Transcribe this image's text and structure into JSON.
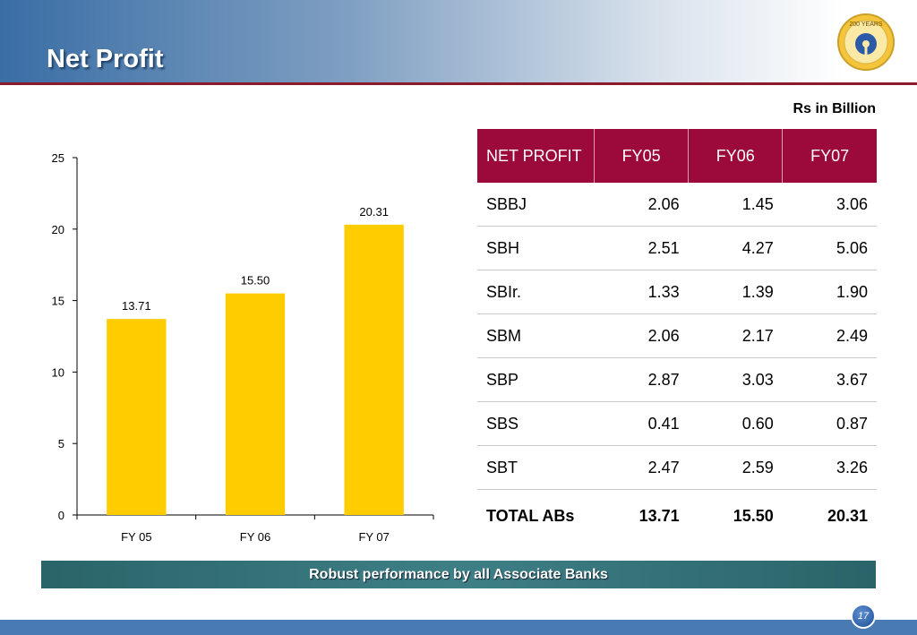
{
  "slide": {
    "title": "Net Profit",
    "unit_label": "Rs in Billion",
    "banner": "Robust performance by all Associate Banks",
    "page_number": "17",
    "logo_text": "200 YEARS"
  },
  "chart_data": {
    "type": "bar",
    "categories": [
      "FY 05",
      "FY 06",
      "FY 07"
    ],
    "values": [
      13.71,
      15.5,
      20.31
    ],
    "data_labels": [
      "13.71",
      "15.50",
      "20.31"
    ],
    "ylim": [
      0,
      25
    ],
    "yticks": [
      "0",
      "5",
      "10",
      "15",
      "20",
      "25"
    ],
    "bar_color": "#ffcc00",
    "grid": false
  },
  "table": {
    "header": [
      "NET PROFIT",
      "FY05",
      "FY06",
      "FY07"
    ],
    "rows": [
      {
        "name": "SBBJ",
        "fy05": "2.06",
        "fy06": "1.45",
        "fy07": "3.06"
      },
      {
        "name": "SBH",
        "fy05": "2.51",
        "fy06": "4.27",
        "fy07": "5.06"
      },
      {
        "name": "SBIr.",
        "fy05": "1.33",
        "fy06": "1.39",
        "fy07": "1.90"
      },
      {
        "name": "SBM",
        "fy05": "2.06",
        "fy06": "2.17",
        "fy07": "2.49"
      },
      {
        "name": "SBP",
        "fy05": "2.87",
        "fy06": "3.03",
        "fy07": "3.67"
      },
      {
        "name": "SBS",
        "fy05": "0.41",
        "fy06": "0.60",
        "fy07": "0.87"
      },
      {
        "name": "SBT",
        "fy05": "2.47",
        "fy06": "2.59",
        "fy07": "3.26"
      }
    ],
    "total": {
      "name": "TOTAL ABs",
      "fy05": "13.71",
      "fy06": "15.50",
      "fy07": "20.31"
    }
  }
}
